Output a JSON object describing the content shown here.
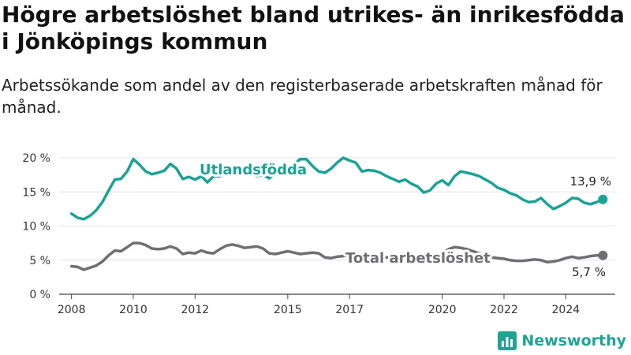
{
  "header": {
    "title": "Högre arbetslöshet bland utrikes- än inrikesfödda i Jönköpings kommun",
    "subtitle": "Arbetssökande som andel av den registerbaserade arbetskraften månad för månad."
  },
  "brand": {
    "name": "Newsworthy",
    "icon": "bar-chart-logo-icon",
    "color": "#21a394"
  },
  "chart_data": {
    "type": "line",
    "xlim": [
      2007.6,
      2025.6
    ],
    "ylim": [
      0,
      20
    ],
    "x_ticks": [
      {
        "value": 2008,
        "label": "2008"
      },
      {
        "value": 2010,
        "label": "2010"
      },
      {
        "value": 2012,
        "label": "2012"
      },
      {
        "value": 2015,
        "label": "2015"
      },
      {
        "value": 2017,
        "label": "2017"
      },
      {
        "value": 2020,
        "label": "2020"
      },
      {
        "value": 2022,
        "label": "2022"
      },
      {
        "value": 2024,
        "label": "2024"
      }
    ],
    "y_ticks": [
      {
        "value": 0,
        "label": "0 %"
      },
      {
        "value": 5,
        "label": "5 %"
      },
      {
        "value": 10,
        "label": "10 %"
      },
      {
        "value": 15,
        "label": "15 %"
      },
      {
        "value": 20,
        "label": "20 %"
      }
    ],
    "grid": "horizontal",
    "legend": "inline labels",
    "series": [
      {
        "name": "Utlandsfödda",
        "color": "#1aa394",
        "end_label": "13,9 %",
        "points": [
          [
            2008.0,
            11.8
          ],
          [
            2008.2,
            11.2
          ],
          [
            2008.4,
            11.0
          ],
          [
            2008.6,
            11.5
          ],
          [
            2008.8,
            12.3
          ],
          [
            2009.0,
            13.5
          ],
          [
            2009.2,
            15.2
          ],
          [
            2009.4,
            16.8
          ],
          [
            2009.6,
            16.9
          ],
          [
            2009.8,
            18.0
          ],
          [
            2010.0,
            19.8
          ],
          [
            2010.2,
            19.0
          ],
          [
            2010.4,
            18.0
          ],
          [
            2010.6,
            17.6
          ],
          [
            2010.8,
            17.8
          ],
          [
            2011.0,
            18.1
          ],
          [
            2011.2,
            19.1
          ],
          [
            2011.4,
            18.4
          ],
          [
            2011.6,
            16.9
          ],
          [
            2011.8,
            17.2
          ],
          [
            2012.0,
            16.8
          ],
          [
            2012.2,
            17.3
          ],
          [
            2012.4,
            16.4
          ],
          [
            2012.6,
            17.3
          ],
          [
            2012.8,
            17.3
          ],
          [
            2013.0,
            17.7
          ],
          [
            2013.2,
            17.6
          ],
          [
            2013.4,
            17.6
          ],
          [
            2013.6,
            17.8
          ],
          [
            2013.8,
            17.7
          ],
          [
            2014.0,
            17.3
          ],
          [
            2014.2,
            17.5
          ],
          [
            2014.4,
            17.0
          ],
          [
            2014.6,
            17.7
          ],
          [
            2014.8,
            17.8
          ],
          [
            2015.0,
            18.2
          ],
          [
            2015.2,
            19.0
          ],
          [
            2015.4,
            19.8
          ],
          [
            2015.6,
            19.8
          ],
          [
            2015.8,
            18.8
          ],
          [
            2016.0,
            18.0
          ],
          [
            2016.2,
            17.8
          ],
          [
            2016.4,
            18.4
          ],
          [
            2016.6,
            19.3
          ],
          [
            2016.8,
            20.0
          ],
          [
            2017.0,
            19.6
          ],
          [
            2017.2,
            19.3
          ],
          [
            2017.4,
            18.0
          ],
          [
            2017.6,
            18.2
          ],
          [
            2017.8,
            18.1
          ],
          [
            2018.0,
            17.8
          ],
          [
            2018.2,
            17.3
          ],
          [
            2018.4,
            16.9
          ],
          [
            2018.6,
            16.5
          ],
          [
            2018.8,
            16.8
          ],
          [
            2019.0,
            16.2
          ],
          [
            2019.2,
            15.8
          ],
          [
            2019.4,
            14.9
          ],
          [
            2019.6,
            15.2
          ],
          [
            2019.8,
            16.2
          ],
          [
            2020.0,
            16.7
          ],
          [
            2020.2,
            16.0
          ],
          [
            2020.4,
            17.3
          ],
          [
            2020.6,
            18.0
          ],
          [
            2020.8,
            17.8
          ],
          [
            2021.0,
            17.6
          ],
          [
            2021.2,
            17.3
          ],
          [
            2021.4,
            16.8
          ],
          [
            2021.6,
            16.3
          ],
          [
            2021.8,
            15.6
          ],
          [
            2022.0,
            15.3
          ],
          [
            2022.2,
            14.8
          ],
          [
            2022.4,
            14.5
          ],
          [
            2022.6,
            13.9
          ],
          [
            2022.8,
            13.5
          ],
          [
            2023.0,
            13.6
          ],
          [
            2023.2,
            14.1
          ],
          [
            2023.4,
            13.2
          ],
          [
            2023.6,
            12.5
          ],
          [
            2023.8,
            12.9
          ],
          [
            2024.0,
            13.4
          ],
          [
            2024.2,
            14.1
          ],
          [
            2024.4,
            14.0
          ],
          [
            2024.6,
            13.4
          ],
          [
            2024.8,
            13.2
          ],
          [
            2025.0,
            13.5
          ],
          [
            2025.2,
            13.9
          ]
        ]
      },
      {
        "name": "Total arbetslöshet",
        "color": "#6f6f73",
        "end_label": "5,7 %",
        "points": [
          [
            2008.0,
            4.1
          ],
          [
            2008.2,
            4.0
          ],
          [
            2008.4,
            3.6
          ],
          [
            2008.6,
            3.9
          ],
          [
            2008.8,
            4.2
          ],
          [
            2009.0,
            4.8
          ],
          [
            2009.2,
            5.7
          ],
          [
            2009.4,
            6.4
          ],
          [
            2009.6,
            6.3
          ],
          [
            2009.8,
            6.9
          ],
          [
            2010.0,
            7.5
          ],
          [
            2010.2,
            7.5
          ],
          [
            2010.4,
            7.2
          ],
          [
            2010.6,
            6.7
          ],
          [
            2010.8,
            6.6
          ],
          [
            2011.0,
            6.7
          ],
          [
            2011.2,
            7.0
          ],
          [
            2011.4,
            6.7
          ],
          [
            2011.6,
            5.9
          ],
          [
            2011.8,
            6.1
          ],
          [
            2012.0,
            6.0
          ],
          [
            2012.2,
            6.4
          ],
          [
            2012.4,
            6.1
          ],
          [
            2012.6,
            6.0
          ],
          [
            2012.8,
            6.6
          ],
          [
            2013.0,
            7.1
          ],
          [
            2013.2,
            7.3
          ],
          [
            2013.4,
            7.1
          ],
          [
            2013.6,
            6.8
          ],
          [
            2013.8,
            6.9
          ],
          [
            2014.0,
            7.0
          ],
          [
            2014.2,
            6.7
          ],
          [
            2014.4,
            6.0
          ],
          [
            2014.6,
            5.9
          ],
          [
            2014.8,
            6.1
          ],
          [
            2015.0,
            6.3
          ],
          [
            2015.2,
            6.1
          ],
          [
            2015.4,
            5.9
          ],
          [
            2015.6,
            6.0
          ],
          [
            2015.8,
            6.1
          ],
          [
            2016.0,
            6.0
          ],
          [
            2016.2,
            5.4
          ],
          [
            2016.4,
            5.3
          ],
          [
            2016.6,
            5.5
          ],
          [
            2016.8,
            5.6
          ],
          [
            2017.0,
            5.7
          ],
          [
            2017.2,
            5.6
          ],
          [
            2017.4,
            5.3
          ],
          [
            2017.6,
            5.5
          ],
          [
            2017.8,
            5.4
          ],
          [
            2018.0,
            5.3
          ],
          [
            2018.2,
            5.4
          ],
          [
            2018.4,
            5.3
          ],
          [
            2018.6,
            5.2
          ],
          [
            2018.8,
            5.3
          ],
          [
            2019.0,
            5.2
          ],
          [
            2019.2,
            5.3
          ],
          [
            2019.4,
            5.2
          ],
          [
            2019.6,
            5.3
          ],
          [
            2019.8,
            5.4
          ],
          [
            2020.0,
            6.0
          ],
          [
            2020.2,
            6.6
          ],
          [
            2020.4,
            6.9
          ],
          [
            2020.6,
            6.8
          ],
          [
            2020.8,
            6.6
          ],
          [
            2021.0,
            6.3
          ],
          [
            2021.2,
            6.0
          ],
          [
            2021.4,
            5.6
          ],
          [
            2021.6,
            5.4
          ],
          [
            2021.8,
            5.3
          ],
          [
            2022.0,
            5.2
          ],
          [
            2022.2,
            5.0
          ],
          [
            2022.4,
            4.9
          ],
          [
            2022.6,
            4.9
          ],
          [
            2022.8,
            5.0
          ],
          [
            2023.0,
            5.1
          ],
          [
            2023.2,
            5.0
          ],
          [
            2023.4,
            4.7
          ],
          [
            2023.6,
            4.8
          ],
          [
            2023.8,
            5.0
          ],
          [
            2024.0,
            5.3
          ],
          [
            2024.2,
            5.5
          ],
          [
            2024.4,
            5.3
          ],
          [
            2024.6,
            5.4
          ],
          [
            2024.8,
            5.6
          ],
          [
            2025.0,
            5.7
          ],
          [
            2025.2,
            5.7
          ]
        ]
      }
    ]
  }
}
